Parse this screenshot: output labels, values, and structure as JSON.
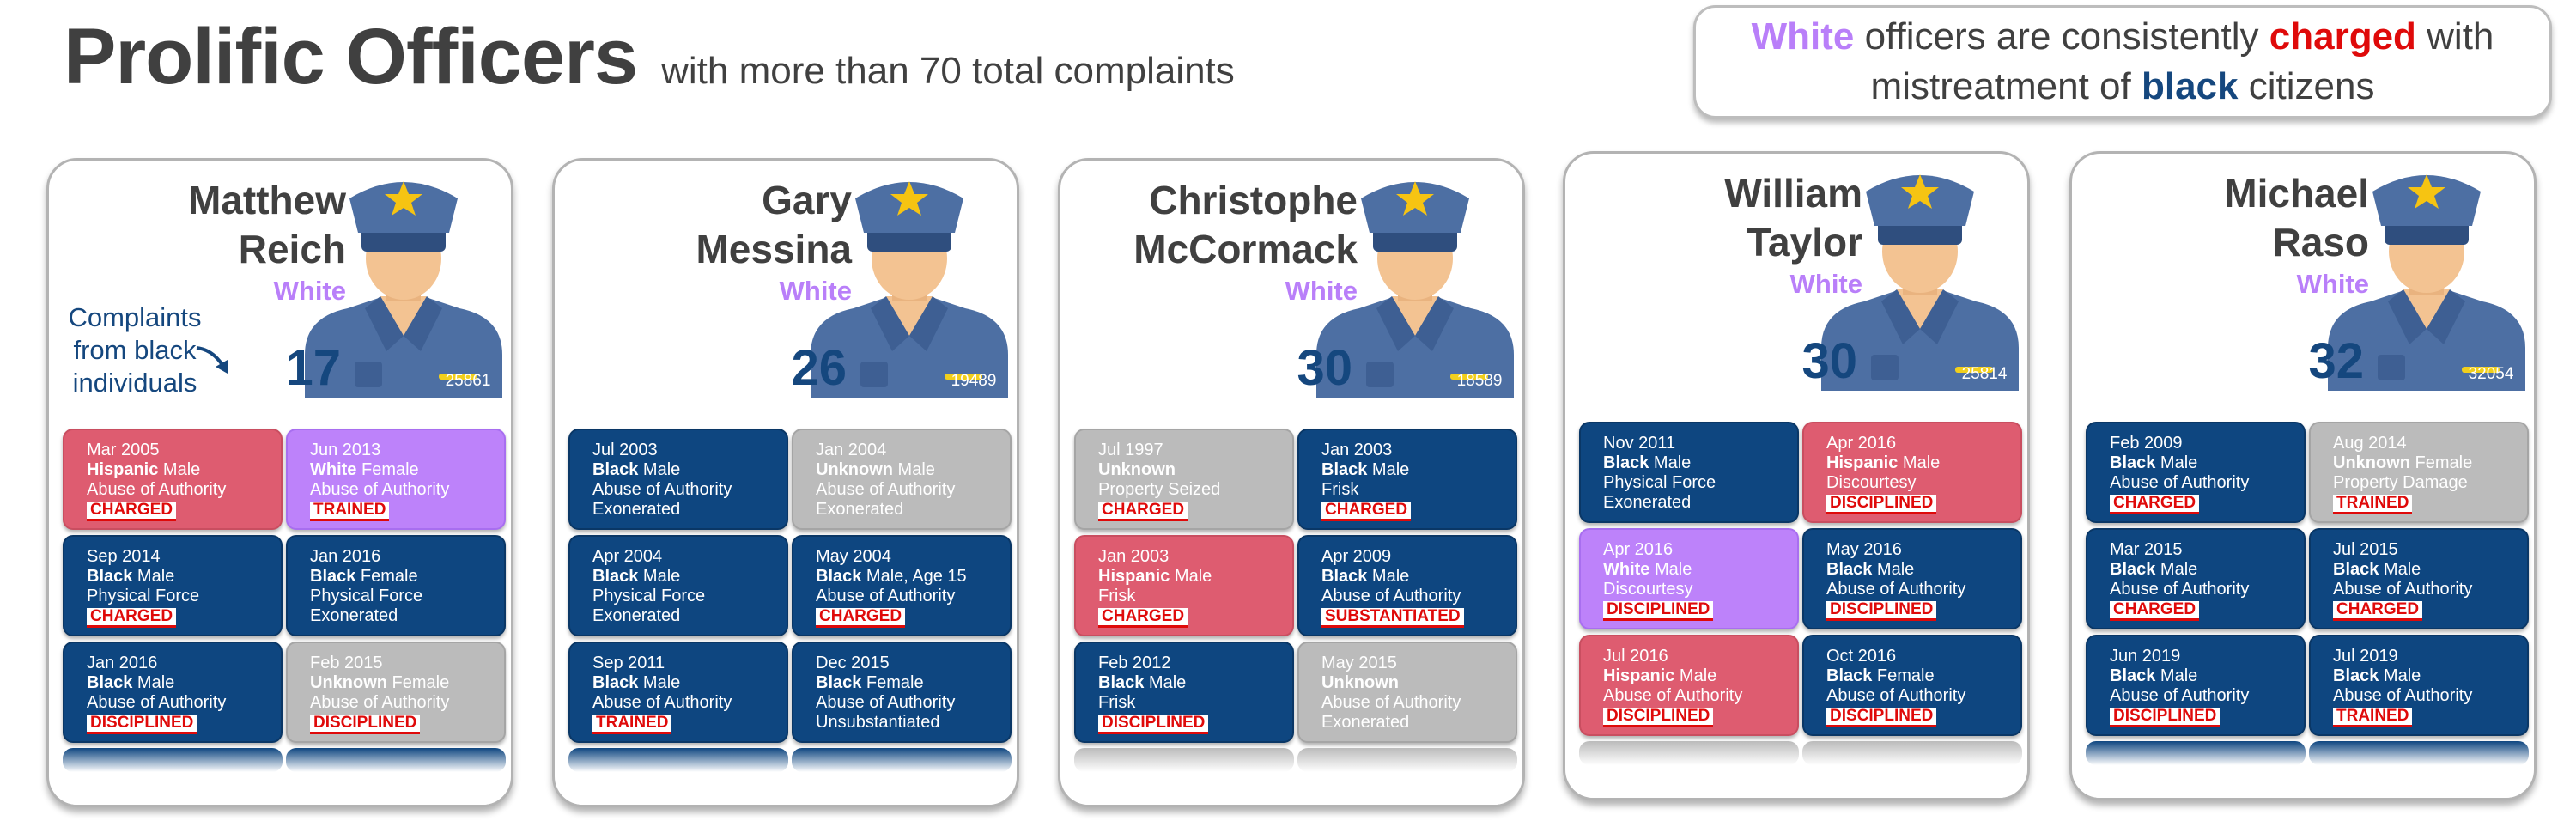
{
  "header": {
    "title": "Prolific Officers",
    "subtitle": "with more than 70 total complaints"
  },
  "callout": {
    "w1": "White",
    "t1": " officers are consistently ",
    "w2": "charged",
    "t2": " with",
    "t3": "mistreatment of ",
    "w3": "black",
    "t4": " citizens"
  },
  "colors": {
    "white_officer": "#b97ff9",
    "charged": "#df0a0a",
    "black_citizen": "#15477e",
    "hispanic_tile": "#de5c70",
    "white_tile": "#bd82fa",
    "black_tile": "#0e4680",
    "unknown_tile": "#bbbbbb"
  },
  "annotation": {
    "l1": "Complaints",
    "l2": "from black",
    "l3": "individuals"
  },
  "officers": [
    {
      "name1": "Matthew",
      "name2": "Reich",
      "race": "White",
      "count": "17",
      "badge": "25861",
      "tiles": [
        {
          "color": "hispanic",
          "date": "Mar 2005",
          "race": "Hispanic",
          "desc": " Male",
          "allegation": "Abuse of Authority",
          "outcome": "CHARGED",
          "outcome_stamp": true
        },
        {
          "color": "white",
          "date": "Jun 2013",
          "race": "White",
          "desc": " Female",
          "allegation": "Abuse of Authority",
          "outcome": "TRAINED",
          "outcome_stamp": true
        },
        {
          "color": "black",
          "date": "Sep 2014",
          "race": "Black",
          "desc": " Male",
          "allegation": "Physical Force",
          "outcome": "CHARGED",
          "outcome_stamp": true
        },
        {
          "color": "black",
          "date": "Jan 2016",
          "race": "Black",
          "desc": " Female",
          "allegation": "Physical Force",
          "outcome": "Exonerated",
          "outcome_stamp": false
        },
        {
          "color": "black",
          "date": "Jan 2016",
          "race": "Black",
          "desc": " Male",
          "allegation": "Abuse of Authority",
          "outcome": "DISCIPLINED",
          "outcome_stamp": true
        },
        {
          "color": "unknown",
          "date": "Feb 2015",
          "race": "Unknown",
          "desc": " Female",
          "allegation": "Abuse of Authority",
          "outcome": "DISCIPLINED",
          "outcome_stamp": true
        }
      ],
      "more": [
        "black",
        "black"
      ]
    },
    {
      "name1": "Gary",
      "name2": "Messina",
      "race": "White",
      "count": "26",
      "badge": "19489",
      "tiles": [
        {
          "color": "black",
          "date": "Jul 2003",
          "race": "Black",
          "desc": " Male",
          "allegation": "Abuse of Authority",
          "outcome": "Exonerated",
          "outcome_stamp": false
        },
        {
          "color": "unknown",
          "date": "Jan 2004",
          "race": "Unknown",
          "desc": " Male",
          "allegation": "Abuse of Authority",
          "outcome": "Exonerated",
          "outcome_stamp": false
        },
        {
          "color": "black",
          "date": "Apr 2004",
          "race": "Black",
          "desc": " Male",
          "allegation": "Physical Force",
          "outcome": "Exonerated",
          "outcome_stamp": false
        },
        {
          "color": "black",
          "date": "May 2004",
          "race": "Black",
          "desc": " Male, Age 15",
          "allegation": "Abuse of Authority",
          "outcome": "CHARGED",
          "outcome_stamp": true
        },
        {
          "color": "black",
          "date": "Sep 2011",
          "race": "Black",
          "desc": " Male",
          "allegation": "Abuse of Authority",
          "outcome": "TRAINED",
          "outcome_stamp": true
        },
        {
          "color": "black",
          "date": "Dec 2015",
          "race": "Black",
          "desc": " Female",
          "allegation": "Abuse of Authority",
          "outcome": "Unsubstantiated",
          "outcome_stamp": false
        }
      ],
      "more": [
        "black",
        "black"
      ]
    },
    {
      "name1": "Christophe",
      "name2": "McCormack",
      "race": "White",
      "count": "30",
      "badge": "18589",
      "tiles": [
        {
          "color": "unknown",
          "date": "Jul 1997",
          "race": "Unknown",
          "desc": "",
          "allegation": "Property Seized",
          "outcome": "CHARGED",
          "outcome_stamp": true
        },
        {
          "color": "black",
          "date": "Jan 2003",
          "race": "Black",
          "desc": " Male",
          "allegation": "Frisk",
          "outcome": "CHARGED",
          "outcome_stamp": true
        },
        {
          "color": "hispanic",
          "date": "Jan 2003",
          "race": "Hispanic",
          "desc": " Male",
          "allegation": "Frisk",
          "outcome": "CHARGED",
          "outcome_stamp": true
        },
        {
          "color": "black",
          "date": "Apr 2009",
          "race": "Black",
          "desc": " Male",
          "allegation": "Abuse of Authority",
          "outcome": "SUBSTANTIATED",
          "outcome_stamp": true
        },
        {
          "color": "black",
          "date": "Feb 2012",
          "race": "Black",
          "desc": " Male",
          "allegation": "Frisk",
          "outcome": "DISCIPLINED",
          "outcome_stamp": true
        },
        {
          "color": "unknown",
          "date": "May 2015",
          "race": "Unknown",
          "desc": "",
          "allegation": "Abuse of Authority",
          "outcome": "Exonerated",
          "outcome_stamp": false
        }
      ],
      "more": [
        "unknown",
        "unknown"
      ]
    },
    {
      "name1": "William",
      "name2": "Taylor",
      "race": "White",
      "count": "30",
      "badge": "25814",
      "tiles": [
        {
          "color": "black",
          "date": "Nov 2011",
          "race": "Black",
          "desc": " Male",
          "allegation": "Physical Force",
          "outcome": "Exonerated",
          "outcome_stamp": false
        },
        {
          "color": "hispanic",
          "date": "Apr 2016",
          "race": "Hispanic",
          "desc": " Male",
          "allegation": "Discourtesy",
          "outcome": "DISCIPLINED",
          "outcome_stamp": true
        },
        {
          "color": "white",
          "date": "Apr 2016",
          "race": "White",
          "desc": " Male",
          "allegation": "Discourtesy",
          "outcome": "DISCIPLINED",
          "outcome_stamp": true
        },
        {
          "color": "black",
          "date": "May 2016",
          "race": "Black",
          "desc": " Male",
          "allegation": "Abuse of Authority",
          "outcome": "DISCIPLINED",
          "outcome_stamp": true
        },
        {
          "color": "hispanic",
          "date": "Jul 2016",
          "race": "Hispanic",
          "desc": " Male",
          "allegation": "Abuse of Authority",
          "outcome": "DISCIPLINED",
          "outcome_stamp": true
        },
        {
          "color": "black",
          "date": "Oct 2016",
          "race": "Black",
          "desc": " Female",
          "allegation": "Abuse of Authority",
          "outcome": "DISCIPLINED",
          "outcome_stamp": true
        }
      ],
      "more": [
        "unknown",
        "unknown"
      ]
    },
    {
      "name1": "Michael",
      "name2": "Raso",
      "race": "White",
      "count": "32",
      "badge": "32054",
      "tiles": [
        {
          "color": "black",
          "date": "Feb 2009",
          "race": "Black",
          "desc": " Male",
          "allegation": "Abuse of Authority",
          "outcome": "CHARGED",
          "outcome_stamp": true
        },
        {
          "color": "unknown",
          "date": "Aug 2014",
          "race": "Unknown",
          "desc": " Female",
          "allegation": "Property Damage",
          "outcome": "TRAINED",
          "outcome_stamp": true
        },
        {
          "color": "black",
          "date": "Mar 2015",
          "race": "Black",
          "desc": " Male",
          "allegation": "Abuse of Authority",
          "outcome": "CHARGED",
          "outcome_stamp": true
        },
        {
          "color": "black",
          "date": "Jul 2015",
          "race": "Black",
          "desc": " Male",
          "allegation": "Abuse of Authority",
          "outcome": "CHARGED",
          "outcome_stamp": true
        },
        {
          "color": "black",
          "date": "Jun 2019",
          "race": "Black",
          "desc": " Male",
          "allegation": "Abuse of Authority",
          "outcome": "DISCIPLINED",
          "outcome_stamp": true
        },
        {
          "color": "black",
          "date": "Jul 2019",
          "race": "Black",
          "desc": " Male",
          "allegation": "Abuse of Authority",
          "outcome": "TRAINED",
          "outcome_stamp": true
        }
      ],
      "more": [
        "black",
        "black"
      ]
    }
  ]
}
